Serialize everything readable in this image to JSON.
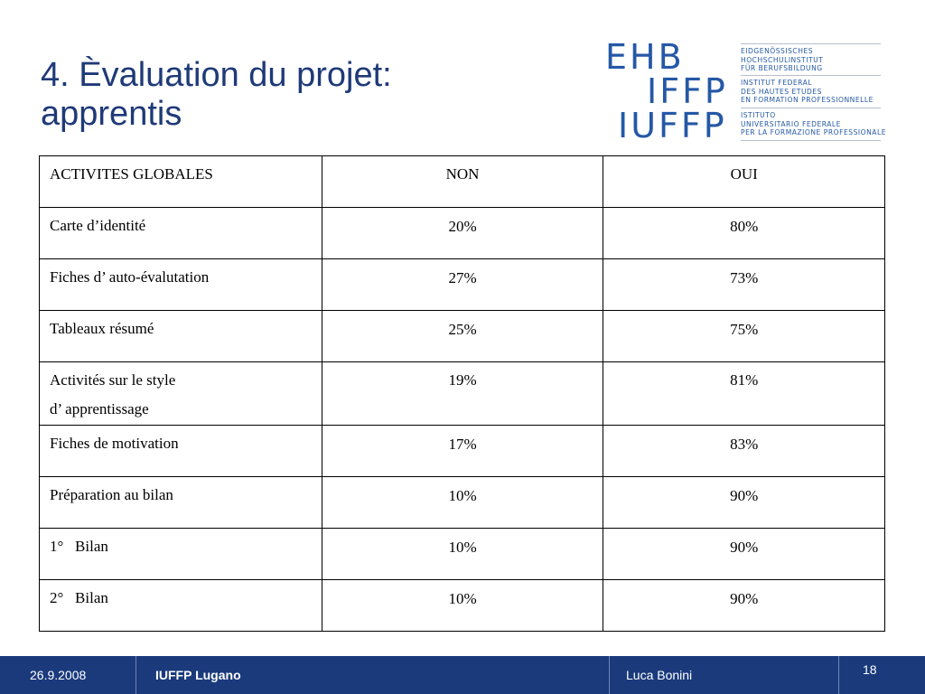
{
  "slide": {
    "title_line1": "4. Èvaluation du projet:",
    "title_line2": "apprentis"
  },
  "logo": {
    "letters": [
      "EHB",
      "IFFP",
      "IUFFP"
    ],
    "text_blocks": [
      [
        "EIDGENÖSSISCHES",
        "HOCHSCHULINSTITUT",
        "FÜR BERUFSBILDUNG"
      ],
      [
        "INSTITUT FEDERAL",
        "DES HAUTES ETUDES",
        "EN FORMATION PROFESSIONNELLE"
      ],
      [
        "ISTITUTO",
        "UNIVERSITARIO FEDERALE",
        "PER LA FORMAZIONE PROFESSIONALE"
      ]
    ],
    "color": "#2558a6"
  },
  "table": {
    "headers": [
      "ACTIVITES GLOBALES",
      "NON",
      "OUI"
    ],
    "rows": [
      [
        "Carte d’identité",
        "20%",
        "80%"
      ],
      [
        "Fiches d’ auto-évalutation",
        "27%",
        "73%"
      ],
      [
        "Tableaux résumé",
        "25%",
        "75%"
      ],
      [
        "Activités sur le style",
        "19%",
        "81%"
      ],
      [
        "Fiches de motivation",
        "17%",
        "83%"
      ],
      [
        "Préparation au bilan",
        "10%",
        "90%"
      ],
      [
        "1°   Bilan",
        "10%",
        "90%"
      ],
      [
        "2°   Bilan",
        "10%",
        "90%"
      ]
    ],
    "row4_line2": "d’ apprentissage"
  },
  "footer": {
    "date": "26.9.2008",
    "org": "IUFFP Lugano",
    "author": "Luca Bonini",
    "page": "18",
    "background": "#1a3a7c"
  },
  "colors": {
    "title": "#1f3a78"
  }
}
